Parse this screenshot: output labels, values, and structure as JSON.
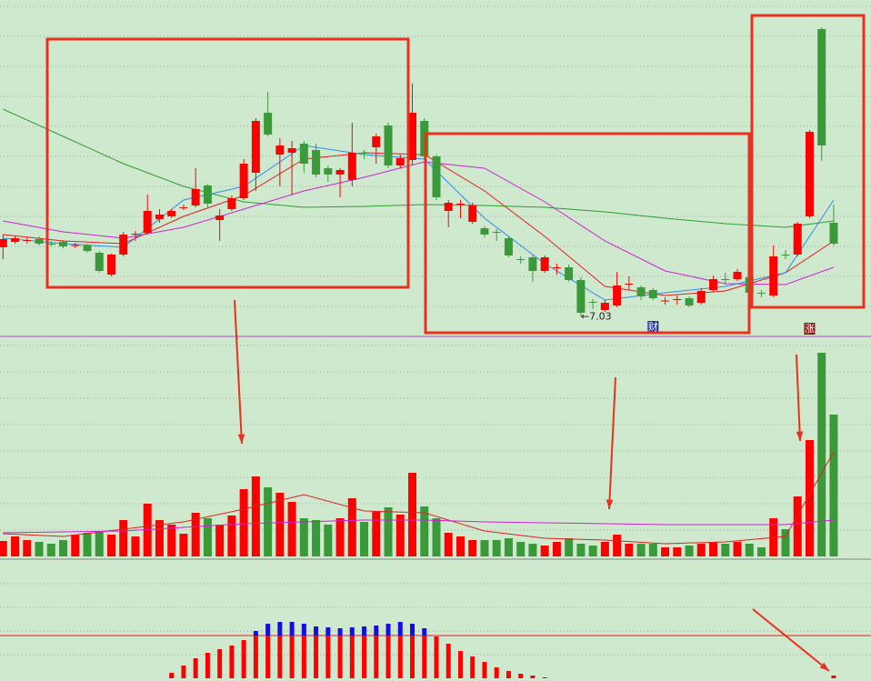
{
  "chart_data": [
    {
      "type": "candlestick",
      "xlim": [
        -0.25,
        72.1
      ],
      "ylim": [
        6.6,
        14
      ],
      "up_color": "#ff0000",
      "down_color": "#3a9a3a",
      "open": [
        8.56,
        8.68,
        8.7,
        8.74,
        8.64,
        8.68,
        8.6,
        8.6,
        8.44,
        7.96,
        8.4,
        8.84,
        8.88,
        9.18,
        9.24,
        9.42,
        9.48,
        9.92,
        9.16,
        9.4,
        9.64,
        10.2,
        11.52,
        10.6,
        10.64,
        10.84,
        10.7,
        10.3,
        10.16,
        10.04,
        10.64,
        10.76,
        11.24,
        10.36,
        10.48,
        11.34,
        10.56,
        9.36,
        9.5,
        9.12,
        8.98,
        8.9,
        8.76,
        8.3,
        8.34,
        8.04,
        8.1,
        8.12,
        7.84,
        7.36,
        7.18,
        7.28,
        7.74,
        7.68,
        7.62,
        7.38,
        7.4,
        7.44,
        7.34,
        7.62,
        7.86,
        7.86,
        7.9,
        7.56,
        7.5,
        8.4,
        8.4,
        9.24,
        13.36,
        9.1
      ],
      "high": [
        8.84,
        8.8,
        8.78,
        8.8,
        8.7,
        8.72,
        8.66,
        8.64,
        8.48,
        8.42,
        8.9,
        8.92,
        9.72,
        9.4,
        9.4,
        9.5,
        10.3,
        9.96,
        9.4,
        9.7,
        10.5,
        11.4,
        11.98,
        10.96,
        10.9,
        10.9,
        10.84,
        10.36,
        10.3,
        11.3,
        10.7,
        11.06,
        11.3,
        10.6,
        12.16,
        11.4,
        10.6,
        9.6,
        9.6,
        9.54,
        9.02,
        8.96,
        8.8,
        8.36,
        8.4,
        8.38,
        8.2,
        8.18,
        7.9,
        7.42,
        7.4,
        8.02,
        7.92,
        7.72,
        7.66,
        7.46,
        7.5,
        7.48,
        7.66,
        7.94,
        8.0,
        8.08,
        8.0,
        7.62,
        8.6,
        8.5,
        9.12,
        11.14,
        13.4,
        9.5
      ],
      "low": [
        8.3,
        8.64,
        8.64,
        8.6,
        8.58,
        8.54,
        8.54,
        8.44,
        8.0,
        7.92,
        8.36,
        8.7,
        8.84,
        9.1,
        9.2,
        9.38,
        9.44,
        9.44,
        8.7,
        9.36,
        9.6,
        9.8,
        11.0,
        9.9,
        9.72,
        10.2,
        10.1,
        10.0,
        9.66,
        9.9,
        10.5,
        10.4,
        10.3,
        10.3,
        10.36,
        10.5,
        9.6,
        9.0,
        9.2,
        9.08,
        8.78,
        8.7,
        8.34,
        8.2,
        7.8,
        8.0,
        7.96,
        7.8,
        7.03,
        7.2,
        7.14,
        7.24,
        7.62,
        7.4,
        7.4,
        7.3,
        7.3,
        7.24,
        7.3,
        7.58,
        7.74,
        7.82,
        7.5,
        7.46,
        7.46,
        8.3,
        8.36,
        9.2,
        10.46,
        8.6
      ],
      "close": [
        8.74,
        8.76,
        8.72,
        8.64,
        8.62,
        8.58,
        8.61,
        8.48,
        8.04,
        8.4,
        8.84,
        8.86,
        9.36,
        9.28,
        9.36,
        9.44,
        9.84,
        9.52,
        9.26,
        9.64,
        10.4,
        11.34,
        11.04,
        10.8,
        10.74,
        10.4,
        10.16,
        10.16,
        10.26,
        10.64,
        10.62,
        11.0,
        10.36,
        10.52,
        11.52,
        10.56,
        9.66,
        9.54,
        9.52,
        9.48,
        8.84,
        8.88,
        8.38,
        8.28,
        8.04,
        8.34,
        8.12,
        7.84,
        7.12,
        7.34,
        7.34,
        7.72,
        7.76,
        7.48,
        7.44,
        7.39,
        7.42,
        7.28,
        7.6,
        7.86,
        7.84,
        8.02,
        7.56,
        7.54,
        8.36,
        8.38,
        9.08,
        11.1,
        10.8,
        8.64
      ],
      "lines": [
        {
          "color": "#2e9e2e",
          "x": [
            0,
            5,
            10,
            15,
            20,
            25,
            30,
            35,
            40,
            45,
            50,
            55,
            60,
            65,
            69
          ],
          "values": [
            11.6,
            11.0,
            10.4,
            9.9,
            9.56,
            9.44,
            9.46,
            9.5,
            9.48,
            9.44,
            9.34,
            9.2,
            9.08,
            9.0,
            9.14
          ]
        },
        {
          "color": "#d020d0",
          "x": [
            0,
            5,
            10,
            15,
            20,
            25,
            30,
            35,
            40,
            45,
            50,
            55,
            60,
            65,
            69
          ],
          "values": [
            9.14,
            8.9,
            8.76,
            9.0,
            9.4,
            9.8,
            10.1,
            10.44,
            10.3,
            9.56,
            8.7,
            8.04,
            7.76,
            7.74,
            8.12
          ]
        },
        {
          "color": "#e02020",
          "x": [
            0,
            5,
            10,
            15,
            20,
            25,
            30,
            35,
            40,
            45,
            50,
            55,
            60,
            65,
            69
          ],
          "values": [
            8.84,
            8.7,
            8.64,
            9.24,
            9.7,
            10.5,
            10.64,
            10.6,
            9.8,
            8.8,
            7.7,
            7.5,
            7.6,
            8.0,
            8.7
          ]
        },
        {
          "color": "#2a8ee8",
          "x": [
            0,
            5,
            10,
            15,
            20,
            25,
            30,
            35,
            40,
            45,
            50,
            55,
            60,
            65,
            69
          ],
          "values": [
            8.76,
            8.64,
            8.56,
            9.6,
            9.9,
            10.8,
            10.6,
            10.5,
            9.2,
            8.2,
            7.4,
            7.56,
            7.7,
            8.0,
            9.6
          ]
        }
      ],
      "annotations": [
        {
          "text": "←7.03",
          "x": 48,
          "y": 7.03,
          "color": "#222222"
        },
        {
          "text": "财",
          "x": 54,
          "y": 6.8,
          "color": "#ffffff",
          "box_color": "#2030a0"
        },
        {
          "text": "涨",
          "x": 67,
          "y": 6.76,
          "color": "#ffffff",
          "box_color": "#901010"
        }
      ]
    },
    {
      "type": "bar",
      "xlim": [
        -0.25,
        72.1
      ],
      "ylim": [
        0,
        242
      ],
      "values": [
        17,
        22,
        18,
        16,
        14,
        18,
        24,
        26,
        28,
        24,
        40,
        22,
        58,
        40,
        35,
        25,
        48,
        42,
        35,
        45,
        74,
        88,
        76,
        70,
        60,
        42,
        40,
        35,
        42,
        64,
        38,
        50,
        54,
        46,
        92,
        55,
        42,
        26,
        22,
        18,
        18,
        18,
        20,
        16,
        14,
        12,
        16,
        20,
        14,
        12,
        16,
        24,
        14,
        14,
        14,
        10,
        10,
        12,
        14,
        16,
        14,
        16,
        14,
        10,
        42,
        30,
        66,
        128,
        224,
        156
      ],
      "lines": [
        {
          "color": "#e02020",
          "x": [
            0,
            5,
            10,
            15,
            20,
            25,
            30,
            35,
            40,
            45,
            50,
            55,
            60,
            65,
            69
          ],
          "values": [
            25,
            22,
            30,
            38,
            52,
            68,
            50,
            48,
            28,
            20,
            18,
            14,
            16,
            22,
            115
          ]
        },
        {
          "color": "#d020d0",
          "x": [
            0,
            5,
            10,
            15,
            20,
            25,
            30,
            35,
            40,
            45,
            50,
            55,
            60,
            65,
            69
          ],
          "values": [
            26,
            27,
            28,
            32,
            36,
            38,
            40,
            40,
            38,
            37,
            36,
            35,
            35,
            35,
            40
          ]
        }
      ]
    },
    {
      "type": "macd",
      "xlim": [
        -0.25,
        72.1
      ],
      "ylim": [
        0,
        129
      ],
      "ref_line": 47,
      "color": "#ff0000",
      "over_color": "#1010e0",
      "values": [
        0,
        0,
        0,
        0,
        0,
        0,
        0,
        0,
        0,
        0,
        0,
        0,
        0,
        0,
        6,
        14,
        22,
        28,
        32,
        36,
        42,
        52,
        60,
        62,
        62,
        60,
        57,
        56,
        55,
        56,
        57,
        58,
        60,
        62,
        60,
        55,
        46,
        38,
        30,
        24,
        18,
        12,
        8,
        5,
        3,
        1,
        0,
        0,
        0,
        0,
        0,
        0,
        0,
        0,
        0,
        0,
        0,
        0,
        0,
        0,
        0,
        0,
        0,
        0,
        0,
        0,
        0,
        0,
        0,
        3
      ]
    }
  ]
}
